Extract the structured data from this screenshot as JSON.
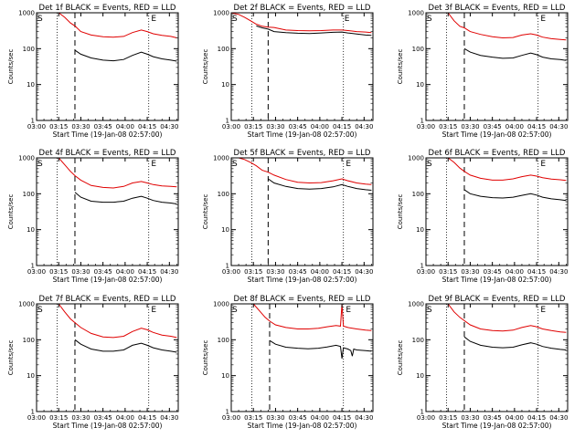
{
  "figure": {
    "series_colors": {
      "events": "#000000",
      "lld": "#e00000"
    }
  },
  "x_axis": {
    "start_label": "Start Time (19-Jan-08 02:57:00)",
    "tick_labels": [
      "03:00",
      "03:15",
      "03:30",
      "03:45",
      "04:00",
      "04:15",
      "04:30"
    ],
    "tick_minutes": [
      3,
      18,
      33,
      48,
      63,
      78,
      93
    ],
    "range_minutes": [
      3,
      99
    ]
  },
  "y_axis": {
    "label": "Counts/sec",
    "scale": "log",
    "range": [
      1,
      1000
    ],
    "tick_labels": [
      "1",
      "10",
      "100",
      "1000"
    ]
  },
  "chart_data": [
    {
      "type": "line",
      "title": "Det 1f BLACK = Events, RED = LLD",
      "markers": {
        "S": 3,
        "E": 80
      },
      "dotted_lines": [
        17,
        79
      ],
      "dashed_lines": [
        29
      ],
      "lld_points": [
        [
          18,
          1000
        ],
        [
          22,
          750
        ],
        [
          26,
          520
        ],
        [
          29,
          430
        ],
        [
          33,
          300
        ],
        [
          40,
          240
        ],
        [
          48,
          215
        ],
        [
          55,
          210
        ],
        [
          62,
          220
        ],
        [
          68,
          280
        ],
        [
          74,
          330
        ],
        [
          78,
          300
        ],
        [
          82,
          260
        ],
        [
          88,
          235
        ],
        [
          94,
          220
        ],
        [
          98,
          200
        ]
      ],
      "events_points": [
        [
          29,
          90
        ],
        [
          33,
          70
        ],
        [
          40,
          55
        ],
        [
          48,
          48
        ],
        [
          55,
          46
        ],
        [
          62,
          50
        ],
        [
          68,
          65
        ],
        [
          74,
          80
        ],
        [
          78,
          70
        ],
        [
          82,
          60
        ],
        [
          88,
          52
        ],
        [
          94,
          48
        ],
        [
          98,
          45
        ]
      ]
    },
    {
      "type": "line",
      "title": "Det 2f BLACK = Events, RED = LLD",
      "markers": {
        "S": 3,
        "E": 79
      },
      "dotted_lines": [
        17,
        79
      ],
      "dashed_lines": [
        28
      ],
      "lld_points": [
        [
          3,
          1000
        ],
        [
          8,
          900
        ],
        [
          12,
          750
        ],
        [
          16,
          600
        ],
        [
          20,
          480
        ],
        [
          24,
          420
        ],
        [
          28,
          400
        ],
        [
          32,
          390
        ],
        [
          40,
          330
        ],
        [
          48,
          320
        ],
        [
          56,
          315
        ],
        [
          64,
          320
        ],
        [
          72,
          330
        ],
        [
          78,
          330
        ],
        [
          82,
          320
        ],
        [
          88,
          300
        ],
        [
          94,
          290
        ],
        [
          98,
          280
        ]
      ],
      "events_points": [
        [
          20,
          430
        ],
        [
          24,
          380
        ],
        [
          28,
          350
        ],
        [
          32,
          300
        ],
        [
          40,
          280
        ],
        [
          48,
          270
        ],
        [
          56,
          265
        ],
        [
          64,
          275
        ],
        [
          72,
          285
        ],
        [
          78,
          290
        ],
        [
          82,
          275
        ],
        [
          88,
          255
        ],
        [
          94,
          240
        ],
        [
          98,
          235
        ]
      ]
    },
    {
      "type": "line",
      "title": "Det 3f BLACK = Events, RED = LLD",
      "markers": {
        "S": 3,
        "E": 80
      },
      "dotted_lines": [
        17,
        79
      ],
      "dashed_lines": [
        29
      ],
      "lld_points": [
        [
          18,
          1000
        ],
        [
          22,
          600
        ],
        [
          26,
          420
        ],
        [
          29,
          380
        ],
        [
          33,
          300
        ],
        [
          40,
          250
        ],
        [
          48,
          215
        ],
        [
          55,
          200
        ],
        [
          62,
          205
        ],
        [
          68,
          240
        ],
        [
          74,
          260
        ],
        [
          78,
          240
        ],
        [
          82,
          210
        ],
        [
          88,
          190
        ],
        [
          94,
          180
        ],
        [
          98,
          175
        ]
      ],
      "events_points": [
        [
          29,
          100
        ],
        [
          33,
          80
        ],
        [
          40,
          65
        ],
        [
          48,
          58
        ],
        [
          55,
          54
        ],
        [
          62,
          55
        ],
        [
          68,
          65
        ],
        [
          74,
          75
        ],
        [
          78,
          68
        ],
        [
          82,
          58
        ],
        [
          88,
          52
        ],
        [
          94,
          50
        ],
        [
          98,
          47
        ]
      ]
    },
    {
      "type": "line",
      "title": "Det 4f BLACK = Events, RED = LLD",
      "markers": {
        "S": 3,
        "E": 80
      },
      "dotted_lines": [
        17,
        79
      ],
      "dashed_lines": [
        29
      ],
      "lld_points": [
        [
          18,
          1000
        ],
        [
          22,
          650
        ],
        [
          26,
          420
        ],
        [
          29,
          320
        ],
        [
          33,
          240
        ],
        [
          40,
          170
        ],
        [
          48,
          150
        ],
        [
          55,
          145
        ],
        [
          62,
          160
        ],
        [
          68,
          200
        ],
        [
          74,
          220
        ],
        [
          78,
          200
        ],
        [
          82,
          180
        ],
        [
          88,
          165
        ],
        [
          94,
          160
        ],
        [
          98,
          155
        ]
      ],
      "events_points": [
        [
          29,
          110
        ],
        [
          33,
          80
        ],
        [
          40,
          62
        ],
        [
          48,
          58
        ],
        [
          55,
          58
        ],
        [
          62,
          62
        ],
        [
          68,
          75
        ],
        [
          74,
          85
        ],
        [
          78,
          75
        ],
        [
          82,
          65
        ],
        [
          88,
          58
        ],
        [
          94,
          55
        ],
        [
          98,
          52
        ]
      ]
    },
    {
      "type": "line",
      "title": "Det 5f BLACK = Events, RED = LLD",
      "markers": {
        "S": 3,
        "E": 80
      },
      "dotted_lines": [
        17,
        79
      ],
      "dashed_lines": [
        28
      ],
      "lld_points": [
        [
          3,
          1000
        ],
        [
          8,
          1000
        ],
        [
          12,
          900
        ],
        [
          16,
          750
        ],
        [
          20,
          600
        ],
        [
          24,
          450
        ],
        [
          28,
          400
        ],
        [
          32,
          330
        ],
        [
          40,
          250
        ],
        [
          48,
          210
        ],
        [
          56,
          200
        ],
        [
          64,
          205
        ],
        [
          72,
          230
        ],
        [
          78,
          260
        ],
        [
          82,
          230
        ],
        [
          88,
          200
        ],
        [
          94,
          185
        ],
        [
          98,
          180
        ]
      ],
      "events_points": [
        [
          28,
          260
        ],
        [
          32,
          200
        ],
        [
          40,
          160
        ],
        [
          48,
          140
        ],
        [
          56,
          135
        ],
        [
          64,
          140
        ],
        [
          72,
          155
        ],
        [
          78,
          180
        ],
        [
          82,
          160
        ],
        [
          88,
          140
        ],
        [
          94,
          130
        ],
        [
          98,
          125
        ]
      ]
    },
    {
      "type": "line",
      "title": "Det 6f BLACK = Events, RED = LLD",
      "markers": {
        "S": 3,
        "E": 80
      },
      "dotted_lines": [
        17,
        79
      ],
      "dashed_lines": [
        29
      ],
      "lld_points": [
        [
          18,
          1000
        ],
        [
          22,
          750
        ],
        [
          26,
          520
        ],
        [
          29,
          420
        ],
        [
          33,
          330
        ],
        [
          40,
          270
        ],
        [
          48,
          240
        ],
        [
          55,
          240
        ],
        [
          62,
          260
        ],
        [
          68,
          300
        ],
        [
          74,
          330
        ],
        [
          78,
          310
        ],
        [
          82,
          280
        ],
        [
          88,
          255
        ],
        [
          94,
          245
        ],
        [
          98,
          235
        ]
      ],
      "events_points": [
        [
          29,
          130
        ],
        [
          33,
          100
        ],
        [
          40,
          85
        ],
        [
          48,
          78
        ],
        [
          55,
          76
        ],
        [
          62,
          80
        ],
        [
          68,
          90
        ],
        [
          74,
          100
        ],
        [
          78,
          92
        ],
        [
          82,
          80
        ],
        [
          88,
          72
        ],
        [
          94,
          68
        ],
        [
          98,
          65
        ]
      ]
    },
    {
      "type": "line",
      "title": "Det 7f BLACK = Events, RED = LLD",
      "markers": {
        "S": 3,
        "E": 80
      },
      "dotted_lines": [
        17,
        79
      ],
      "dashed_lines": [
        29
      ],
      "lld_points": [
        [
          18,
          1000
        ],
        [
          22,
          600
        ],
        [
          26,
          380
        ],
        [
          29,
          300
        ],
        [
          33,
          220
        ],
        [
          40,
          150
        ],
        [
          48,
          120
        ],
        [
          55,
          115
        ],
        [
          62,
          125
        ],
        [
          68,
          170
        ],
        [
          74,
          210
        ],
        [
          78,
          190
        ],
        [
          82,
          160
        ],
        [
          88,
          135
        ],
        [
          94,
          125
        ],
        [
          98,
          115
        ]
      ],
      "events_points": [
        [
          29,
          100
        ],
        [
          33,
          75
        ],
        [
          40,
          55
        ],
        [
          48,
          48
        ],
        [
          55,
          48
        ],
        [
          62,
          52
        ],
        [
          68,
          70
        ],
        [
          74,
          80
        ],
        [
          78,
          70
        ],
        [
          82,
          60
        ],
        [
          88,
          52
        ],
        [
          94,
          48
        ],
        [
          98,
          45
        ]
      ]
    },
    {
      "type": "line",
      "title": "Det 8f BLACK = Events, RED = LLD",
      "markers": {
        "S": 3,
        "E": 80
      },
      "dotted_lines": [
        17,
        79
      ],
      "dashed_lines": [
        29
      ],
      "lld_points": [
        [
          18,
          1000
        ],
        [
          22,
          650
        ],
        [
          26,
          420
        ],
        [
          29,
          330
        ],
        [
          33,
          260
        ],
        [
          40,
          220
        ],
        [
          48,
          200
        ],
        [
          55,
          200
        ],
        [
          62,
          210
        ],
        [
          68,
          230
        ],
        [
          74,
          250
        ],
        [
          77,
          240
        ],
        [
          78,
          1000
        ],
        [
          79,
          240
        ],
        [
          82,
          220
        ],
        [
          88,
          200
        ],
        [
          94,
          185
        ],
        [
          98,
          180
        ]
      ],
      "events_points": [
        [
          29,
          95
        ],
        [
          33,
          75
        ],
        [
          40,
          62
        ],
        [
          48,
          58
        ],
        [
          55,
          56
        ],
        [
          62,
          58
        ],
        [
          68,
          63
        ],
        [
          74,
          70
        ],
        [
          77,
          65
        ],
        [
          78,
          30
        ],
        [
          79,
          60
        ],
        [
          82,
          55
        ],
        [
          84,
          50
        ],
        [
          85,
          35
        ],
        [
          86,
          55
        ],
        [
          88,
          52
        ],
        [
          94,
          50
        ],
        [
          98,
          48
        ]
      ]
    },
    {
      "type": "line",
      "title": "Det 9f BLACK = Events, RED = LLD",
      "markers": {
        "S": 3,
        "E": 80
      },
      "dotted_lines": [
        17,
        79
      ],
      "dashed_lines": [
        29
      ],
      "lld_points": [
        [
          18,
          1000
        ],
        [
          22,
          600
        ],
        [
          26,
          420
        ],
        [
          29,
          340
        ],
        [
          33,
          260
        ],
        [
          40,
          200
        ],
        [
          48,
          180
        ],
        [
          55,
          175
        ],
        [
          62,
          185
        ],
        [
          68,
          220
        ],
        [
          74,
          250
        ],
        [
          78,
          230
        ],
        [
          82,
          200
        ],
        [
          88,
          180
        ],
        [
          94,
          165
        ],
        [
          98,
          160
        ]
      ],
      "events_points": [
        [
          29,
          120
        ],
        [
          33,
          90
        ],
        [
          40,
          70
        ],
        [
          48,
          62
        ],
        [
          55,
          60
        ],
        [
          62,
          62
        ],
        [
          68,
          72
        ],
        [
          74,
          82
        ],
        [
          78,
          75
        ],
        [
          82,
          65
        ],
        [
          88,
          58
        ],
        [
          94,
          54
        ],
        [
          98,
          52
        ]
      ]
    }
  ]
}
